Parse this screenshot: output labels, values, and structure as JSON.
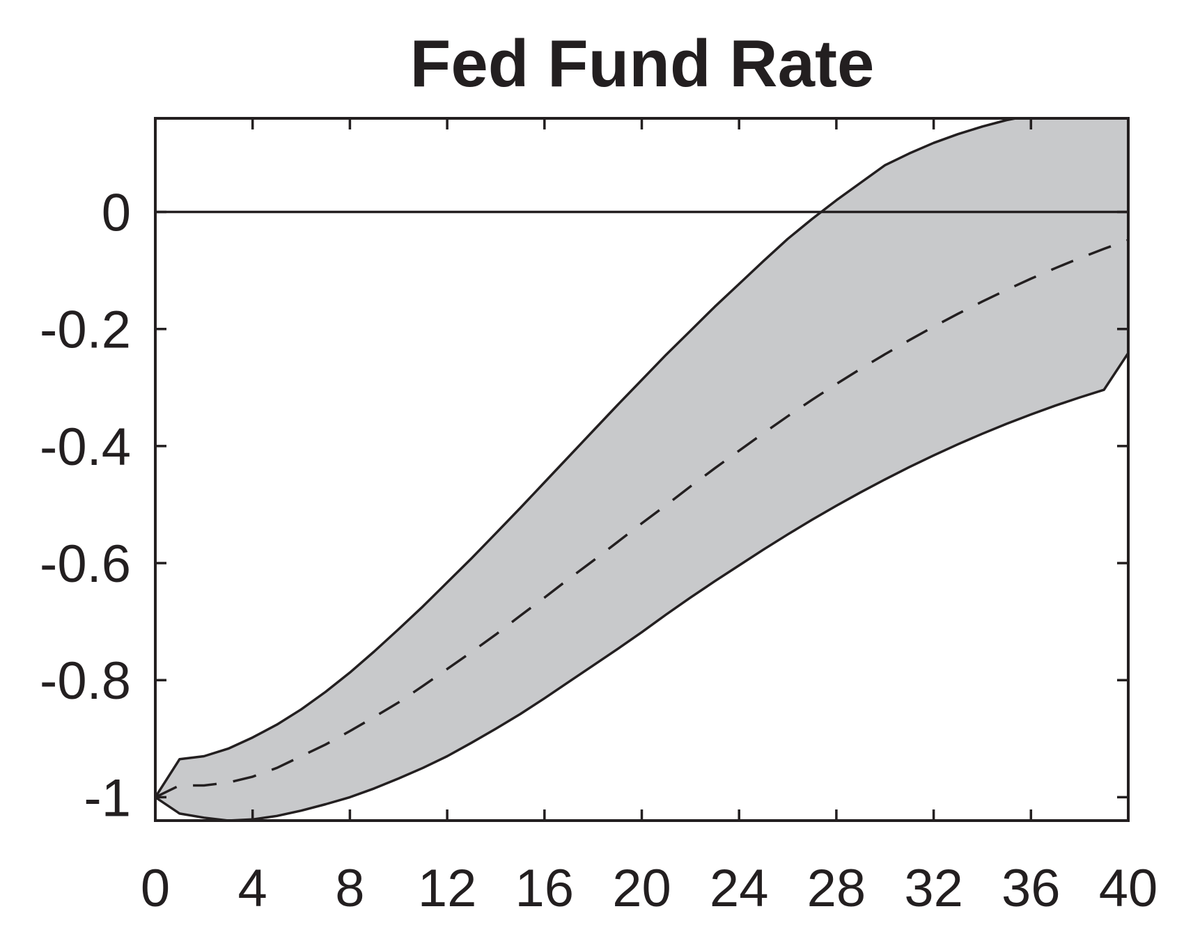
{
  "chart_data": {
    "type": "area",
    "title": "Fed Fund Rate",
    "xlabel": "",
    "ylabel": "",
    "xlim": [
      0,
      40
    ],
    "ylim": [
      -1.04,
      0.16
    ],
    "xticks": [
      0,
      4,
      8,
      12,
      16,
      20,
      24,
      28,
      32,
      36,
      40
    ],
    "yticks": [
      -1,
      -0.8,
      -0.6,
      -0.4,
      -0.2,
      0
    ],
    "xtick_labels": [
      "0",
      "4",
      "8",
      "12",
      "16",
      "20",
      "24",
      "28",
      "32",
      "36",
      "40"
    ],
    "ytick_labels": [
      "-1",
      "-0.8",
      "-0.6",
      "-0.4",
      "-0.2",
      "0"
    ],
    "grid": false,
    "zero_line": 0,
    "colors": {
      "band_fill": "#c8c9cb",
      "line": "#231f20"
    },
    "x": [
      0,
      1,
      2,
      3,
      4,
      5,
      6,
      7,
      8,
      9,
      10,
      11,
      12,
      13,
      14,
      15,
      16,
      17,
      18,
      19,
      20,
      21,
      22,
      23,
      24,
      25,
      26,
      27,
      28,
      29,
      30,
      31,
      32,
      33,
      34,
      35,
      36,
      37,
      38,
      39,
      40
    ],
    "series": [
      {
        "role": "median",
        "style": "dashed",
        "values": [
          -1.0,
          -0.98,
          -0.98,
          -0.975,
          -0.965,
          -0.95,
          -0.93,
          -0.91,
          -0.887,
          -0.863,
          -0.838,
          -0.81,
          -0.781,
          -0.752,
          -0.722,
          -0.69,
          -0.659,
          -0.627,
          -0.596,
          -0.564,
          -0.532,
          -0.501,
          -0.469,
          -0.438,
          -0.408,
          -0.378,
          -0.349,
          -0.321,
          -0.294,
          -0.268,
          -0.243,
          -0.219,
          -0.196,
          -0.174,
          -0.153,
          -0.133,
          -0.114,
          -0.096,
          -0.079,
          -0.063,
          -0.048
        ]
      },
      {
        "role": "upper",
        "style": "solid",
        "values": [
          -1.0,
          -0.935,
          -0.93,
          -0.917,
          -0.898,
          -0.876,
          -0.85,
          -0.82,
          -0.787,
          -0.751,
          -0.713,
          -0.674,
          -0.633,
          -0.592,
          -0.549,
          -0.506,
          -0.462,
          -0.418,
          -0.374,
          -0.33,
          -0.287,
          -0.244,
          -0.203,
          -0.162,
          -0.123,
          -0.084,
          -0.046,
          -0.012,
          0.02,
          0.05,
          0.08,
          0.1,
          0.118,
          0.133,
          0.146,
          0.157,
          0.165,
          0.171,
          0.176,
          0.179,
          0.16
        ]
      },
      {
        "role": "lower",
        "style": "solid",
        "values": [
          -1.0,
          -1.028,
          -1.035,
          -1.04,
          -1.038,
          -1.032,
          -1.023,
          -1.012,
          -1.0,
          -0.985,
          -0.968,
          -0.95,
          -0.93,
          -0.907,
          -0.883,
          -0.858,
          -0.831,
          -0.803,
          -0.775,
          -0.747,
          -0.718,
          -0.688,
          -0.659,
          -0.631,
          -0.604,
          -0.577,
          -0.551,
          -0.526,
          -0.502,
          -0.479,
          -0.457,
          -0.436,
          -0.416,
          -0.397,
          -0.379,
          -0.362,
          -0.346,
          -0.331,
          -0.317,
          -0.304,
          -0.241
        ]
      }
    ]
  }
}
